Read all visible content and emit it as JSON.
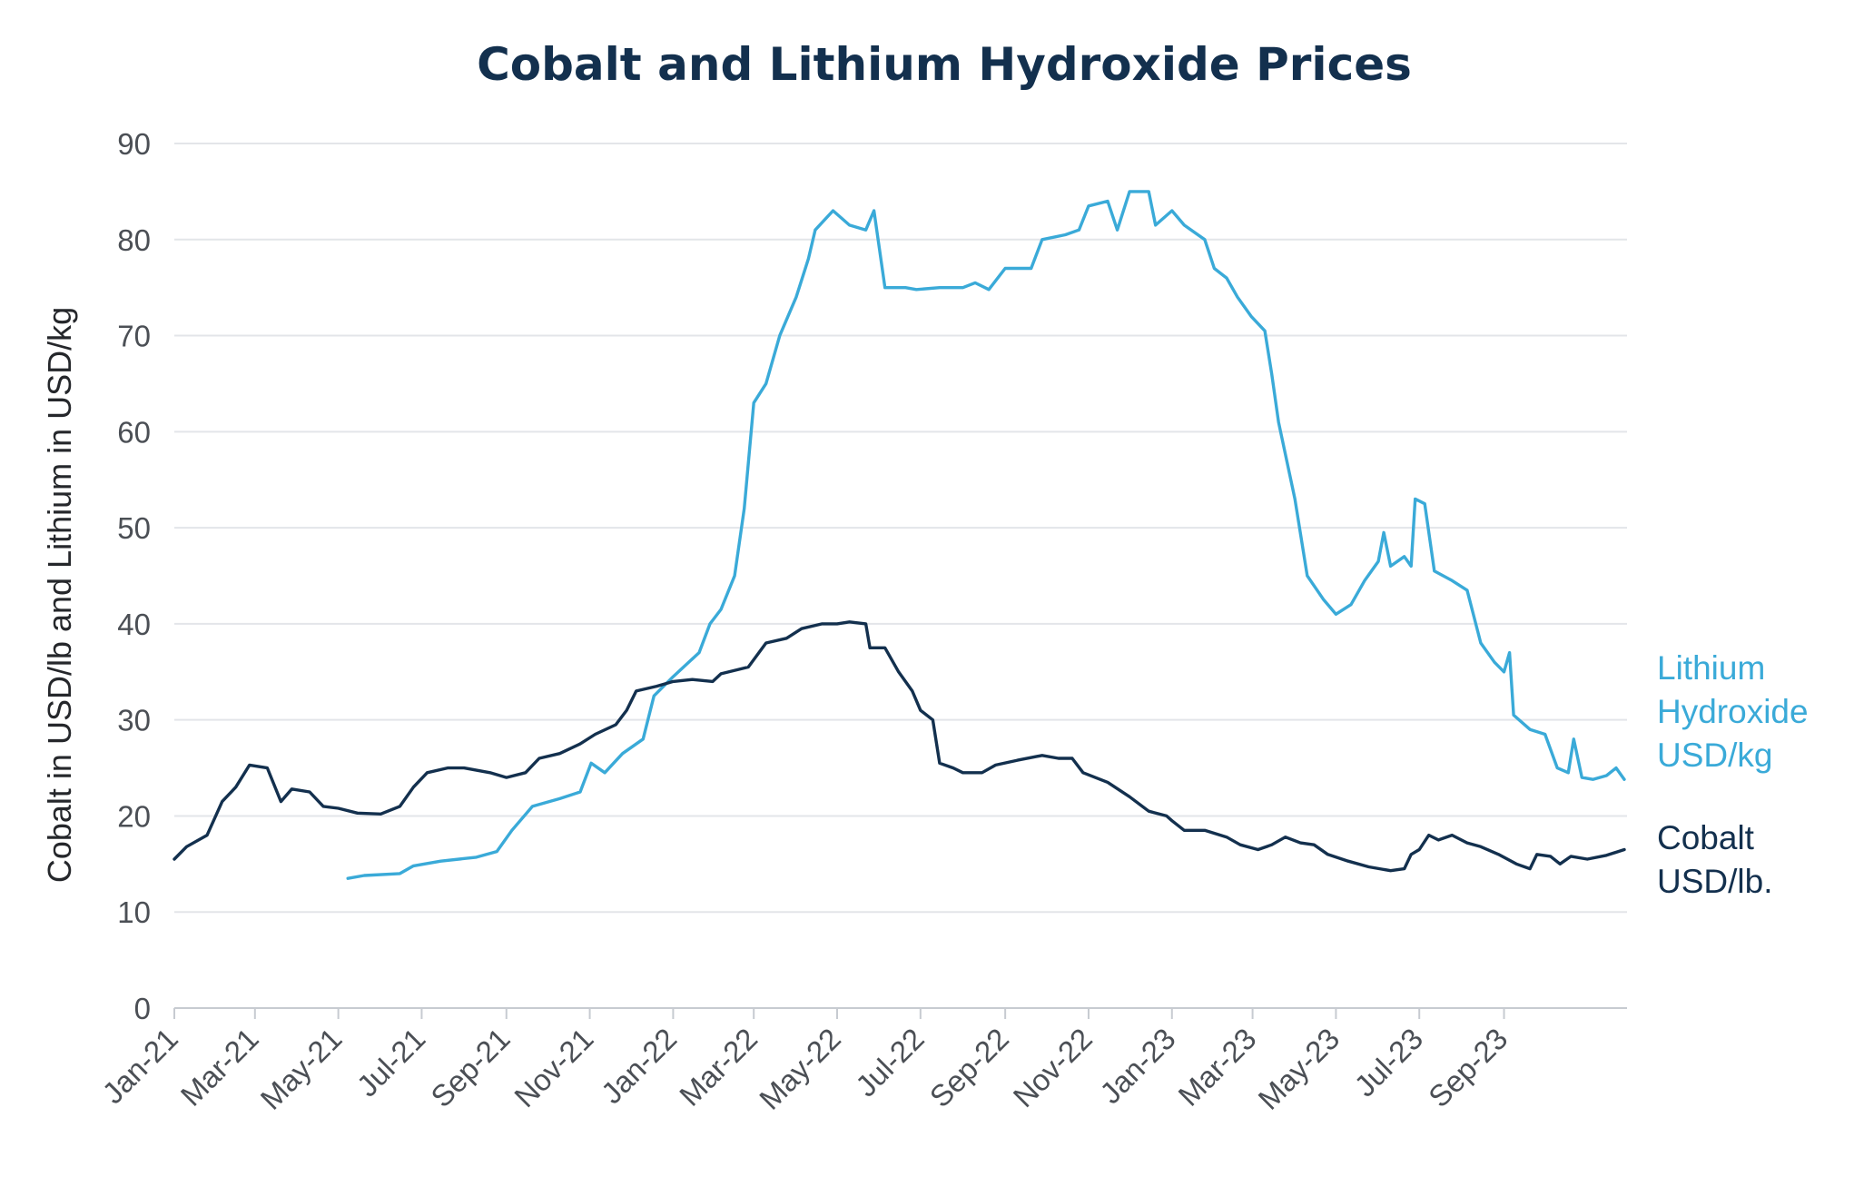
{
  "chart_data": {
    "type": "line",
    "title": "Cobalt and Lithium Hydroxide Prices",
    "ylabel": "Cobalt in USD/lb and Lithium in USD/kg",
    "xlabel": "",
    "ylim": [
      0,
      90
    ],
    "yticks": [
      0,
      10,
      20,
      30,
      40,
      50,
      60,
      70,
      80,
      90
    ],
    "xlim": [
      "2021-01-01",
      "2023-11-30"
    ],
    "x_tick_labels": [
      "Jan-21",
      "Mar-21",
      "May-21",
      "Jul-21",
      "Sep-21",
      "Nov-21",
      "Jan-22",
      "Mar-22",
      "May-22",
      "Jul-22",
      "Sep-22",
      "Nov-22",
      "Jan-23",
      "Mar-23",
      "May-23",
      "Jul-23",
      "Sep-23"
    ],
    "x_tick_dates": [
      "2021-01-01",
      "2021-03-01",
      "2021-05-01",
      "2021-07-01",
      "2021-09-01",
      "2021-11-01",
      "2022-01-01",
      "2022-03-01",
      "2022-05-01",
      "2022-07-01",
      "2022-09-01",
      "2022-11-01",
      "2023-01-01",
      "2023-03-01",
      "2023-05-01",
      "2023-07-01",
      "2023-09-01"
    ],
    "grid": true,
    "legend_placement": "right, at line ends",
    "series": [
      {
        "name": "Lithium Hydroxide USD/kg",
        "legend_lines": [
          "Lithium",
          "Hydroxide",
          "USD/kg"
        ],
        "color": "#3aaad8",
        "points": [
          [
            "2021-05-08",
            13.5
          ],
          [
            "2021-05-20",
            13.8
          ],
          [
            "2021-06-15",
            14.0
          ],
          [
            "2021-06-25",
            14.8
          ],
          [
            "2021-07-15",
            15.3
          ],
          [
            "2021-08-10",
            15.7
          ],
          [
            "2021-08-25",
            16.3
          ],
          [
            "2021-09-05",
            18.5
          ],
          [
            "2021-09-20",
            21.0
          ],
          [
            "2021-10-10",
            21.8
          ],
          [
            "2021-10-25",
            22.5
          ],
          [
            "2021-11-02",
            25.5
          ],
          [
            "2021-11-12",
            24.5
          ],
          [
            "2021-11-25",
            26.5
          ],
          [
            "2021-12-10",
            28.0
          ],
          [
            "2021-12-18",
            32.5
          ],
          [
            "2022-01-01",
            34.5
          ],
          [
            "2022-01-20",
            37.0
          ],
          [
            "2022-01-28",
            40.0
          ],
          [
            "2022-02-05",
            41.5
          ],
          [
            "2022-02-15",
            45.0
          ],
          [
            "2022-02-22",
            52.0
          ],
          [
            "2022-03-01",
            63.0
          ],
          [
            "2022-03-10",
            65.0
          ],
          [
            "2022-03-20",
            70.0
          ],
          [
            "2022-04-01",
            74.0
          ],
          [
            "2022-04-10",
            78.0
          ],
          [
            "2022-04-15",
            81.0
          ],
          [
            "2022-04-28",
            83.0
          ],
          [
            "2022-05-10",
            81.5
          ],
          [
            "2022-05-22",
            81.0
          ],
          [
            "2022-05-28",
            83.0
          ],
          [
            "2022-06-05",
            75.0
          ],
          [
            "2022-06-20",
            75.0
          ],
          [
            "2022-06-28",
            74.8
          ],
          [
            "2022-07-15",
            75.0
          ],
          [
            "2022-08-01",
            75.0
          ],
          [
            "2022-08-10",
            75.5
          ],
          [
            "2022-08-20",
            74.8
          ],
          [
            "2022-09-01",
            77.0
          ],
          [
            "2022-09-20",
            77.0
          ],
          [
            "2022-09-28",
            80.0
          ],
          [
            "2022-10-15",
            80.5
          ],
          [
            "2022-10-25",
            81.0
          ],
          [
            "2022-11-01",
            83.5
          ],
          [
            "2022-11-15",
            84.0
          ],
          [
            "2022-11-22",
            81.0
          ],
          [
            "2022-12-01",
            85.0
          ],
          [
            "2022-12-15",
            85.0
          ],
          [
            "2022-12-20",
            81.5
          ],
          [
            "2023-01-01",
            83.0
          ],
          [
            "2023-01-10",
            81.5
          ],
          [
            "2023-01-25",
            80.0
          ],
          [
            "2023-02-01",
            77.0
          ],
          [
            "2023-02-10",
            76.0
          ],
          [
            "2023-02-18",
            74.0
          ],
          [
            "2023-02-28",
            72.0
          ],
          [
            "2023-03-10",
            70.5
          ],
          [
            "2023-03-15",
            66.0
          ],
          [
            "2023-03-20",
            61.0
          ],
          [
            "2023-04-01",
            53.0
          ],
          [
            "2023-04-10",
            45.0
          ],
          [
            "2023-04-22",
            42.5
          ],
          [
            "2023-05-01",
            41.0
          ],
          [
            "2023-05-12",
            42.0
          ],
          [
            "2023-05-22",
            44.5
          ],
          [
            "2023-06-01",
            46.5
          ],
          [
            "2023-06-05",
            49.5
          ],
          [
            "2023-06-10",
            46.0
          ],
          [
            "2023-06-20",
            47.0
          ],
          [
            "2023-06-25",
            46.0
          ],
          [
            "2023-06-28",
            53.0
          ],
          [
            "2023-07-05",
            52.5
          ],
          [
            "2023-07-12",
            45.5
          ],
          [
            "2023-07-25",
            44.5
          ],
          [
            "2023-08-05",
            43.5
          ],
          [
            "2023-08-15",
            38.0
          ],
          [
            "2023-08-25",
            36.0
          ],
          [
            "2023-09-01",
            35.0
          ],
          [
            "2023-09-05",
            37.0
          ],
          [
            "2023-09-08",
            30.5
          ],
          [
            "2023-09-20",
            29.0
          ],
          [
            "2023-10-01",
            28.5
          ],
          [
            "2023-10-10",
            25.0
          ],
          [
            "2023-10-18",
            24.5
          ],
          [
            "2023-10-22",
            28.0
          ],
          [
            "2023-10-28",
            24.0
          ],
          [
            "2023-11-05",
            23.8
          ],
          [
            "2023-11-15",
            24.2
          ],
          [
            "2023-11-22",
            25.0
          ],
          [
            "2023-11-28",
            23.8
          ]
        ]
      },
      {
        "name": "Cobalt USD/lb.",
        "legend_lines": [
          "Cobalt",
          "USD/lb."
        ],
        "color": "#13304e",
        "points": [
          [
            "2021-01-01",
            15.5
          ],
          [
            "2021-01-10",
            16.8
          ],
          [
            "2021-01-25",
            18.0
          ],
          [
            "2021-02-05",
            21.5
          ],
          [
            "2021-02-15",
            23.0
          ],
          [
            "2021-02-25",
            25.3
          ],
          [
            "2021-03-10",
            25.0
          ],
          [
            "2021-03-20",
            21.5
          ],
          [
            "2021-03-28",
            22.8
          ],
          [
            "2021-04-10",
            22.5
          ],
          [
            "2021-04-20",
            21.0
          ],
          [
            "2021-05-01",
            20.8
          ],
          [
            "2021-05-15",
            20.3
          ],
          [
            "2021-06-01",
            20.2
          ],
          [
            "2021-06-15",
            21.0
          ],
          [
            "2021-06-25",
            23.0
          ],
          [
            "2021-07-05",
            24.5
          ],
          [
            "2021-07-20",
            25.0
          ],
          [
            "2021-08-01",
            25.0
          ],
          [
            "2021-08-20",
            24.5
          ],
          [
            "2021-09-01",
            24.0
          ],
          [
            "2021-09-15",
            24.5
          ],
          [
            "2021-09-25",
            26.0
          ],
          [
            "2021-10-10",
            26.5
          ],
          [
            "2021-10-25",
            27.5
          ],
          [
            "2021-11-05",
            28.5
          ],
          [
            "2021-11-20",
            29.5
          ],
          [
            "2021-11-28",
            31.0
          ],
          [
            "2021-12-05",
            33.0
          ],
          [
            "2021-12-20",
            33.5
          ],
          [
            "2022-01-01",
            34.0
          ],
          [
            "2022-01-15",
            34.2
          ],
          [
            "2022-01-30",
            34.0
          ],
          [
            "2022-02-05",
            34.8
          ],
          [
            "2022-02-25",
            35.5
          ],
          [
            "2022-03-10",
            38.0
          ],
          [
            "2022-03-25",
            38.5
          ],
          [
            "2022-04-05",
            39.5
          ],
          [
            "2022-04-20",
            40.0
          ],
          [
            "2022-05-01",
            40.0
          ],
          [
            "2022-05-10",
            40.2
          ],
          [
            "2022-05-22",
            40.0
          ],
          [
            "2022-05-25",
            37.5
          ],
          [
            "2022-06-05",
            37.5
          ],
          [
            "2022-06-15",
            35.0
          ],
          [
            "2022-06-25",
            33.0
          ],
          [
            "2022-07-01",
            31.0
          ],
          [
            "2022-07-10",
            30.0
          ],
          [
            "2022-07-15",
            25.5
          ],
          [
            "2022-07-25",
            25.0
          ],
          [
            "2022-08-01",
            24.5
          ],
          [
            "2022-08-15",
            24.5
          ],
          [
            "2022-08-25",
            25.3
          ],
          [
            "2022-09-10",
            25.8
          ],
          [
            "2022-09-28",
            26.3
          ],
          [
            "2022-10-10",
            26.0
          ],
          [
            "2022-10-20",
            26.0
          ],
          [
            "2022-10-28",
            24.5
          ],
          [
            "2022-11-15",
            23.5
          ],
          [
            "2022-12-01",
            22.0
          ],
          [
            "2022-12-15",
            20.5
          ],
          [
            "2022-12-28",
            20.0
          ],
          [
            "2023-01-01",
            19.5
          ],
          [
            "2023-01-10",
            18.5
          ],
          [
            "2023-01-25",
            18.5
          ],
          [
            "2023-02-10",
            17.8
          ],
          [
            "2023-02-20",
            17.0
          ],
          [
            "2023-03-05",
            16.5
          ],
          [
            "2023-03-15",
            17.0
          ],
          [
            "2023-03-25",
            17.8
          ],
          [
            "2023-04-05",
            17.2
          ],
          [
            "2023-04-15",
            17.0
          ],
          [
            "2023-04-25",
            16.0
          ],
          [
            "2023-05-10",
            15.3
          ],
          [
            "2023-05-25",
            14.7
          ],
          [
            "2023-06-10",
            14.3
          ],
          [
            "2023-06-20",
            14.5
          ],
          [
            "2023-06-25",
            16.0
          ],
          [
            "2023-07-01",
            16.5
          ],
          [
            "2023-07-08",
            18.0
          ],
          [
            "2023-07-15",
            17.5
          ],
          [
            "2023-07-25",
            18.0
          ],
          [
            "2023-08-05",
            17.2
          ],
          [
            "2023-08-15",
            16.8
          ],
          [
            "2023-08-28",
            16.0
          ],
          [
            "2023-09-10",
            15.0
          ],
          [
            "2023-09-20",
            14.5
          ],
          [
            "2023-09-25",
            16.0
          ],
          [
            "2023-10-05",
            15.8
          ],
          [
            "2023-10-12",
            15.0
          ],
          [
            "2023-10-20",
            15.8
          ],
          [
            "2023-11-01",
            15.5
          ],
          [
            "2023-11-15",
            15.9
          ],
          [
            "2023-11-28",
            16.5
          ]
        ]
      }
    ]
  }
}
